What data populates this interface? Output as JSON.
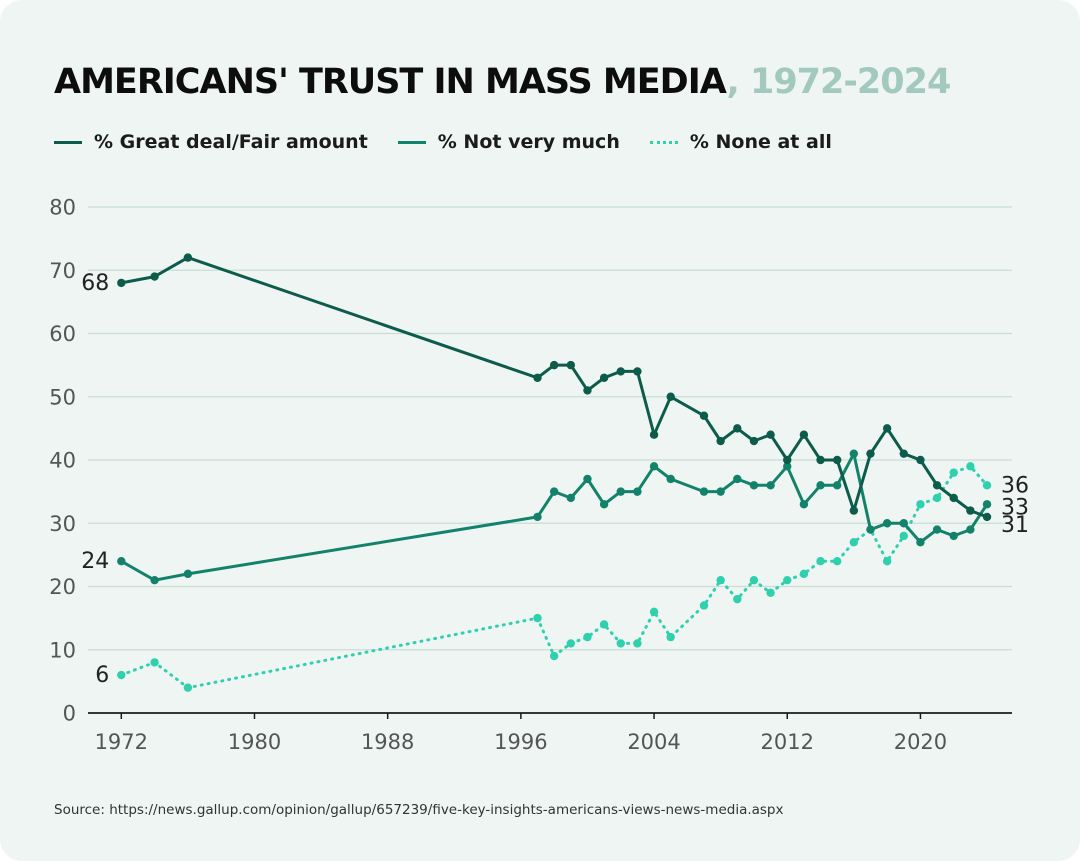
{
  "title": {
    "main": "AMERICANS' TRUST IN MASS MEDIA",
    "years": ", 1972-2024"
  },
  "source": "Source: https://news.gallup.com/opinion/gallup/657239/five-key-insights-americans-views-news-media.aspx",
  "colors": {
    "great_deal": "#0d5c4b",
    "not_very_much": "#13826b",
    "none_at_all": "#2fd0ae",
    "grid": "#c9ddd6",
    "axis": "#1b1b1b",
    "tick_text": "#555555",
    "title_years": "#a3c9bf",
    "background": "#eef5f2"
  },
  "chart_data": {
    "type": "line",
    "title": "AMERICANS' TRUST IN MASS MEDIA , 1972-2024",
    "xlabel": "",
    "ylabel": "",
    "xlim": [
      1970,
      2025.5
    ],
    "ylim": [
      0,
      80
    ],
    "xticks": [
      1972,
      1980,
      1988,
      1996,
      2004,
      2012,
      2020
    ],
    "yticks": [
      0,
      10,
      20,
      30,
      40,
      50,
      60,
      70,
      80
    ],
    "grid": "horizontal",
    "legend": "top-left",
    "x": [
      1972,
      1974,
      1976,
      1997,
      1998,
      1999,
      2000,
      2001,
      2002,
      2003,
      2004,
      2005,
      2007,
      2008,
      2009,
      2010,
      2011,
      2012,
      2013,
      2014,
      2015,
      2016,
      2017,
      2018,
      2019,
      2020,
      2021,
      2022,
      2023,
      2024
    ],
    "series": [
      {
        "name": "% Great deal/Fair amount",
        "style": "solid",
        "values": [
          68,
          69,
          72,
          53,
          55,
          55,
          51,
          53,
          54,
          54,
          44,
          50,
          47,
          43,
          45,
          43,
          44,
          40,
          44,
          40,
          40,
          32,
          41,
          45,
          41,
          40,
          36,
          34,
          32,
          31
        ]
      },
      {
        "name": "% Not very much",
        "style": "solid",
        "values": [
          24,
          21,
          22,
          31,
          35,
          34,
          37,
          33,
          35,
          35,
          39,
          37,
          35,
          35,
          37,
          36,
          36,
          39,
          33,
          36,
          36,
          41,
          29,
          30,
          30,
          27,
          29,
          28,
          29,
          33
        ]
      },
      {
        "name": "% None at all",
        "style": "dotted",
        "values": [
          6,
          8,
          4,
          15,
          9,
          11,
          12,
          14,
          11,
          11,
          16,
          12,
          17,
          21,
          18,
          21,
          19,
          21,
          22,
          24,
          24,
          27,
          29,
          24,
          28,
          33,
          34,
          38,
          39,
          36
        ]
      }
    ],
    "annotations": [
      {
        "series": 0,
        "at": "start",
        "text": "68"
      },
      {
        "series": 1,
        "at": "start",
        "text": "24"
      },
      {
        "series": 2,
        "at": "start",
        "text": "6"
      },
      {
        "series": 2,
        "at": "end",
        "text": "36"
      },
      {
        "series": 1,
        "at": "end",
        "text": "33"
      },
      {
        "series": 0,
        "at": "end",
        "text": "31"
      }
    ]
  }
}
